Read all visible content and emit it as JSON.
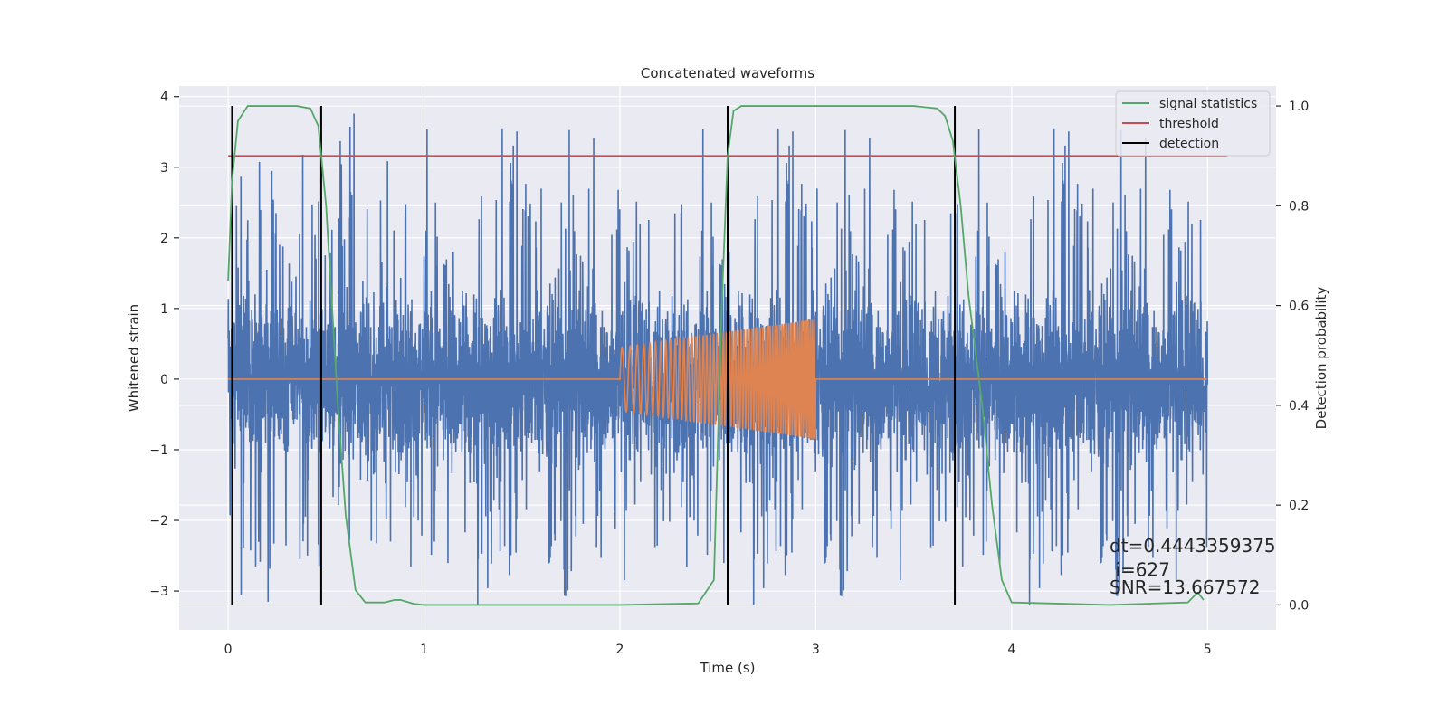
{
  "chart_data": {
    "type": "line",
    "title": "Concatenated waveforms",
    "xlabel": "Time (s)",
    "ylabel": "Whitened strain",
    "y2label": "Detection probability",
    "xlim": [
      -0.25,
      5.35
    ],
    "ylim": [
      -3.55,
      4.15
    ],
    "y2lim": [
      -0.05,
      1.04
    ],
    "xticks": [
      0,
      1,
      2,
      3,
      4,
      5
    ],
    "xtick_labels": [
      "0",
      "1",
      "2",
      "3",
      "4",
      "5"
    ],
    "yticks": [
      -3,
      -2,
      -1,
      0,
      1,
      2,
      3,
      4
    ],
    "ytick_labels": [
      "−3",
      "−2",
      "−1",
      "0",
      "1",
      "2",
      "3",
      "4"
    ],
    "y2ticks": [
      0.0,
      0.2,
      0.4,
      0.6,
      0.8,
      1.0
    ],
    "y2tick_labels": [
      "0.0",
      "0.2",
      "0.4",
      "0.6",
      "0.8",
      "1.0"
    ],
    "grid": true,
    "legend_position": "top-right",
    "colors": {
      "noise": "#4c72b0",
      "template": "#dd8452",
      "signal_statistics": "#55a868",
      "threshold": "#c44e52",
      "detection": "#000000",
      "background": "#eaeaf2",
      "grid": "#ffffff"
    },
    "noise": {
      "x_range": [
        0,
        5
      ],
      "core_amplitude": 1.05,
      "spikes_up_max": 3.8,
      "spikes_down_min": -3.25
    },
    "template": {
      "x_range": [
        2.0,
        3.0
      ],
      "amplitude_start": 0.45,
      "amplitude_end": 0.85,
      "baseline_x_range": [
        0,
        5
      ],
      "baseline_y": 0
    },
    "series": [
      {
        "name": "signal statistics",
        "axis": "right",
        "x": [
          0.0,
          0.02,
          0.05,
          0.1,
          0.2,
          0.35,
          0.42,
          0.46,
          0.5,
          0.53,
          0.56,
          0.6,
          0.65,
          0.7,
          0.8,
          0.85,
          0.88,
          0.95,
          1.0,
          1.5,
          2.0,
          2.4,
          2.48,
          2.52,
          2.55,
          2.58,
          2.62,
          2.7,
          3.0,
          3.5,
          3.62,
          3.66,
          3.7,
          3.74,
          3.78,
          3.85,
          3.9,
          3.95,
          4.0,
          4.5,
          4.9,
          4.95,
          4.98
        ],
        "values": [
          0.65,
          0.85,
          0.97,
          1.0,
          1.0,
          1.0,
          0.995,
          0.96,
          0.8,
          0.6,
          0.4,
          0.18,
          0.03,
          0.005,
          0.005,
          0.01,
          0.01,
          0.002,
          0.0,
          0.0,
          0.0,
          0.003,
          0.05,
          0.6,
          0.9,
          0.99,
          1.0,
          1.0,
          1.0,
          1.0,
          0.995,
          0.98,
          0.93,
          0.8,
          0.62,
          0.4,
          0.2,
          0.05,
          0.005,
          0.0,
          0.005,
          0.025,
          0.01
        ]
      },
      {
        "name": "threshold",
        "axis": "right",
        "x": [
          0.0,
          5.1
        ],
        "values": [
          0.9,
          0.9
        ]
      },
      {
        "name": "detection",
        "axis": "right",
        "x_positions": [
          0.02,
          0.475,
          2.55,
          3.71
        ],
        "y_range": [
          0.0,
          1.0
        ]
      }
    ],
    "annotations": [
      {
        "text": "dt=0.4443359375",
        "x": 4.5,
        "y": -2.45
      },
      {
        "text": " i=627",
        "x": 4.5,
        "y": -2.79
      },
      {
        "text": "SNR=13.667572",
        "x": 4.5,
        "y": -3.04
      }
    ]
  }
}
